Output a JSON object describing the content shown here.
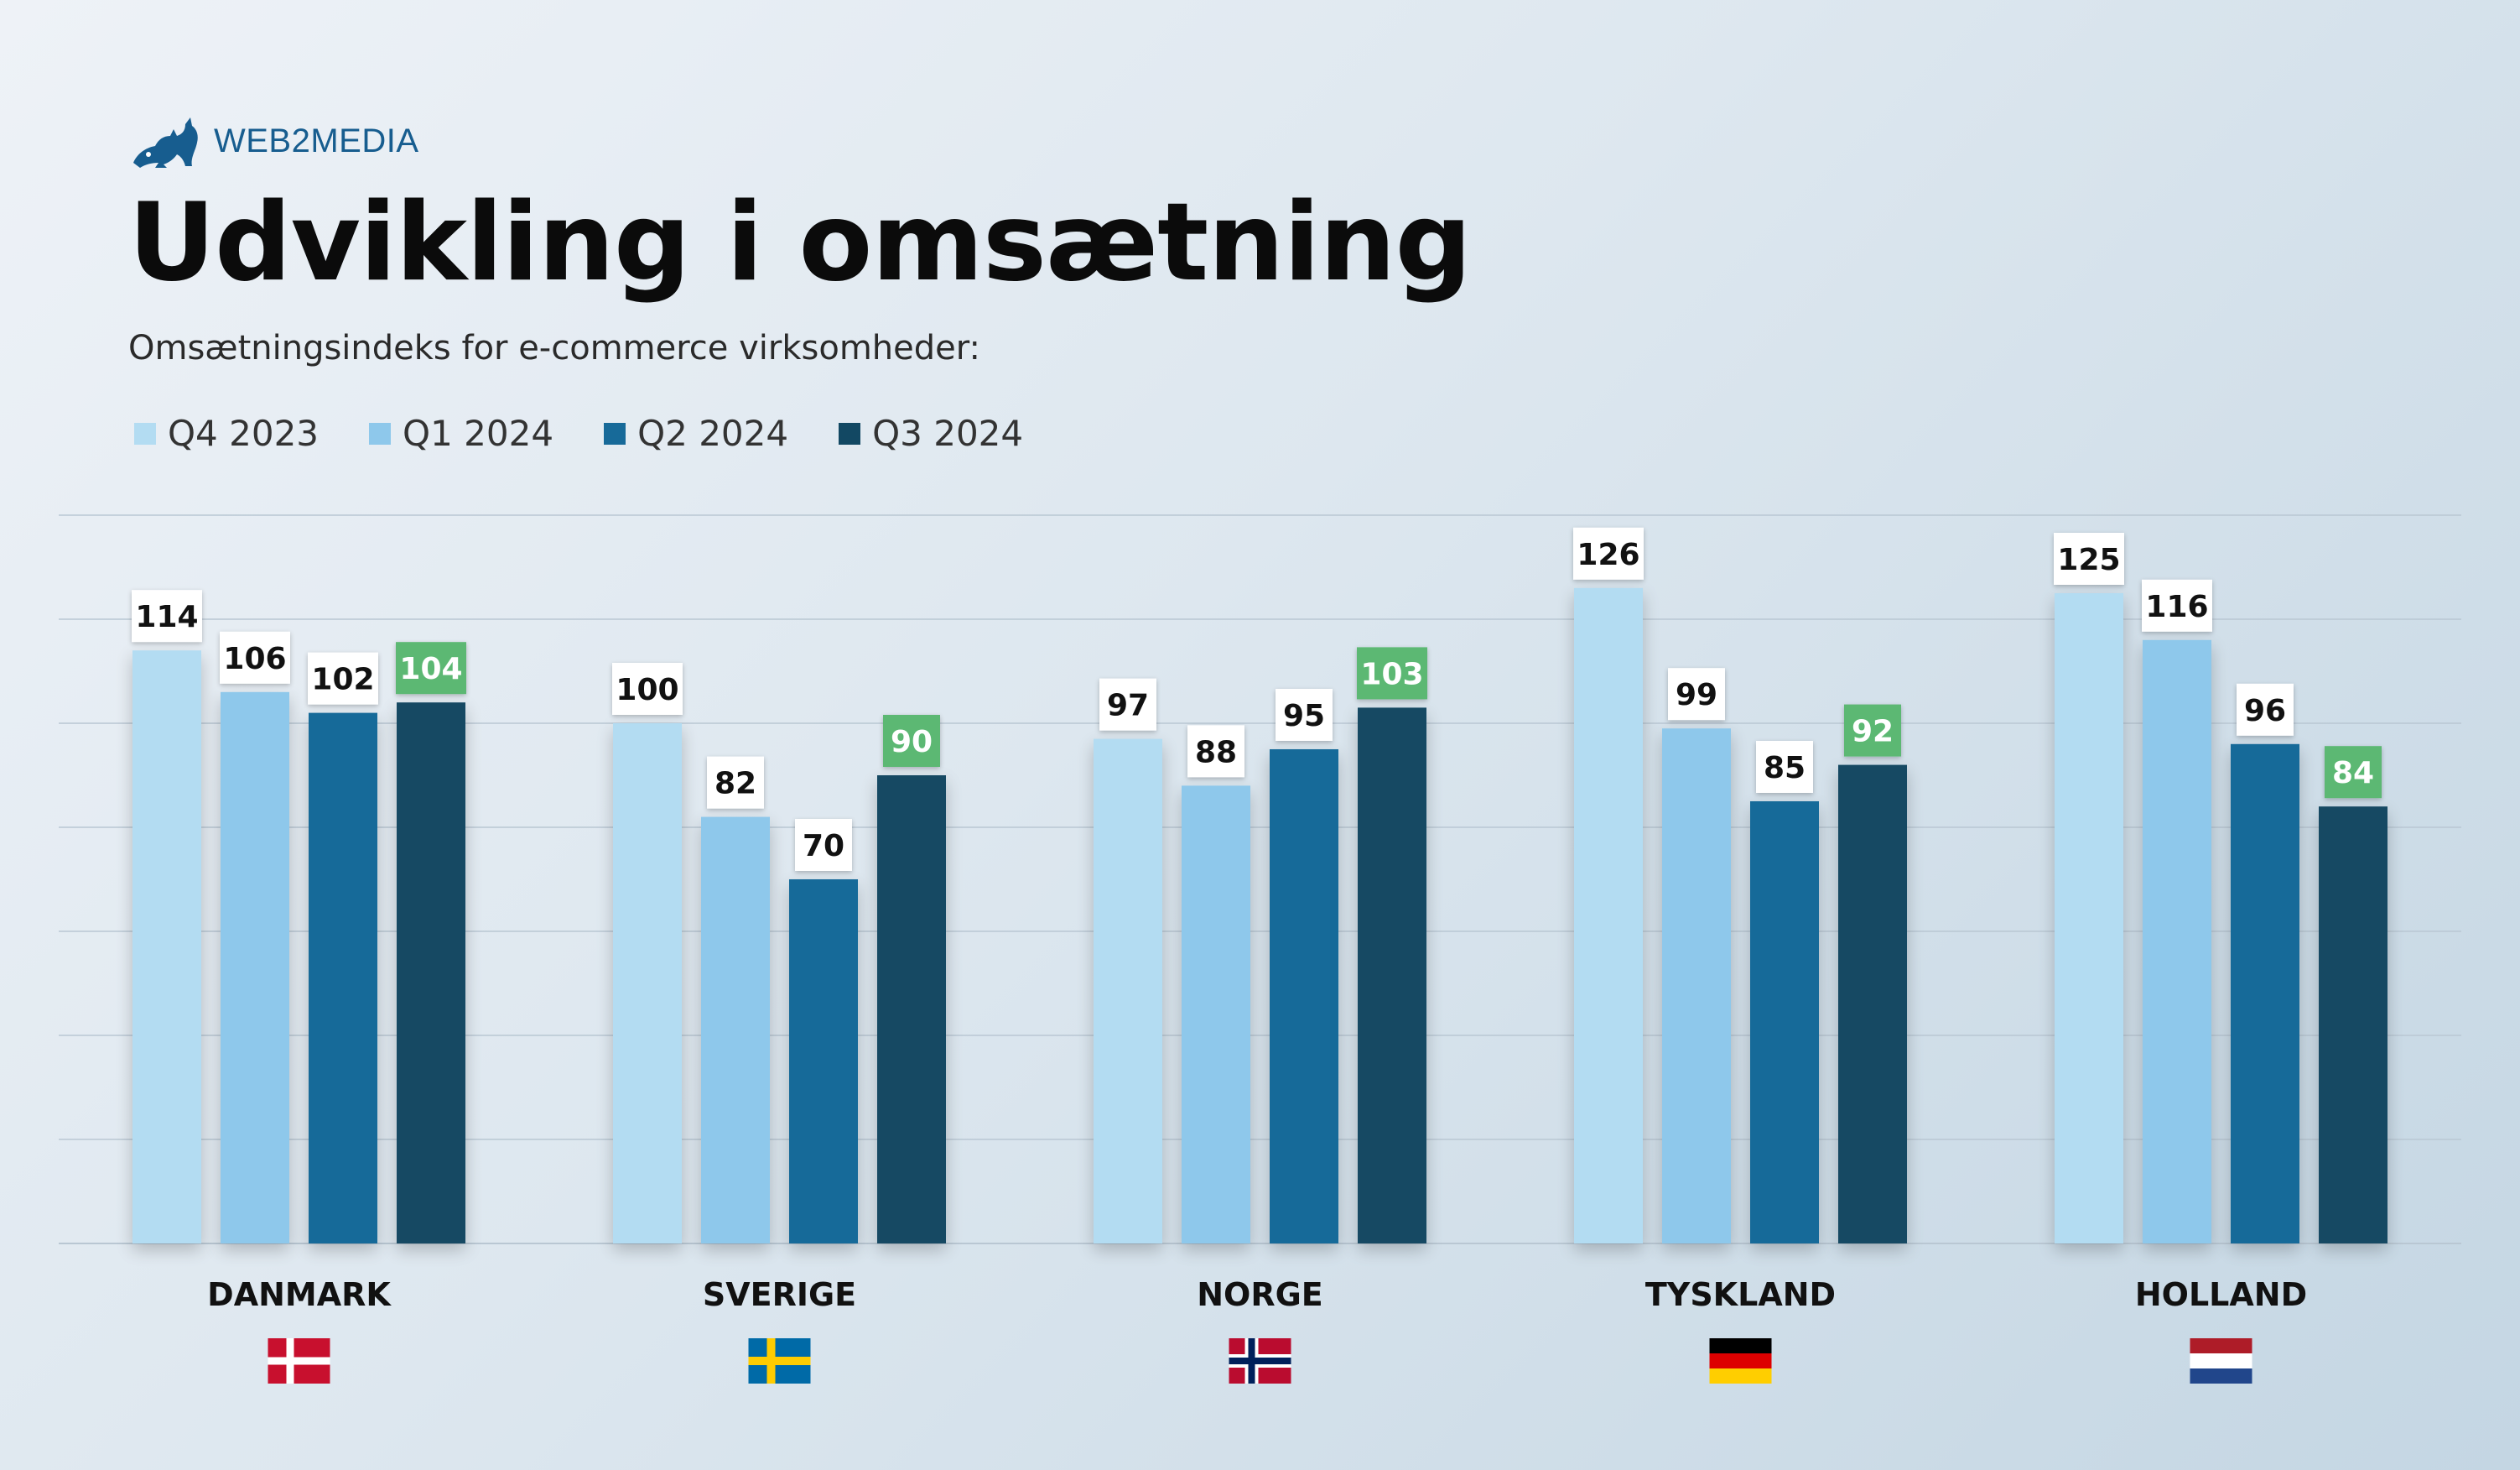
{
  "brand": {
    "logo_text": "WEB2MEDIA",
    "logo_icon": "cat-icon",
    "color": "#175d8f"
  },
  "header": {
    "title": "Udvikling i omsætning",
    "subtitle": "Omsætningsindeks for e-commerce virksomheder:"
  },
  "legend": {
    "items": [
      {
        "label": "Q4 2023",
        "color": "#b3dcf2"
      },
      {
        "label": "Q1 2024",
        "color": "#8ec8eb"
      },
      {
        "label": "Q2 2024",
        "color": "#176a99"
      },
      {
        "label": "Q3 2024",
        "color": "#124863"
      }
    ]
  },
  "chart_data": {
    "type": "bar",
    "title": "Udvikling i omsætning",
    "subtitle": "Omsætningsindeks for e-commerce virksomheder:",
    "categories": [
      "DANMARK",
      "SVERIGE",
      "NORGE",
      "TYSKLAND",
      "HOLLAND"
    ],
    "series": [
      {
        "name": "Q4 2023",
        "color": "#b3dcf2",
        "values": [
          114,
          100,
          97,
          126,
          125
        ]
      },
      {
        "name": "Q1 2024",
        "color": "#8ec8eb",
        "values": [
          106,
          82,
          88,
          99,
          116
        ]
      },
      {
        "name": "Q2 2024",
        "color": "#176a99",
        "values": [
          102,
          70,
          95,
          85,
          96
        ]
      },
      {
        "name": "Q3 2024",
        "color": "#124863",
        "values": [
          104,
          90,
          103,
          92,
          84
        ]
      }
    ],
    "highlight_series": "Q3 2024",
    "highlight_label_color": "#5cb873",
    "ylim": [
      0,
      140
    ],
    "grid": true,
    "legend_position": "top-left",
    "flags": [
      {
        "country": "DANMARK",
        "icon": "denmark-flag-icon"
      },
      {
        "country": "SVERIGE",
        "icon": "sweden-flag-icon"
      },
      {
        "country": "NORGE",
        "icon": "norway-flag-icon"
      },
      {
        "country": "TYSKLAND",
        "icon": "germany-flag-icon"
      },
      {
        "country": "HOLLAND",
        "icon": "netherlands-flag-icon"
      }
    ]
  }
}
